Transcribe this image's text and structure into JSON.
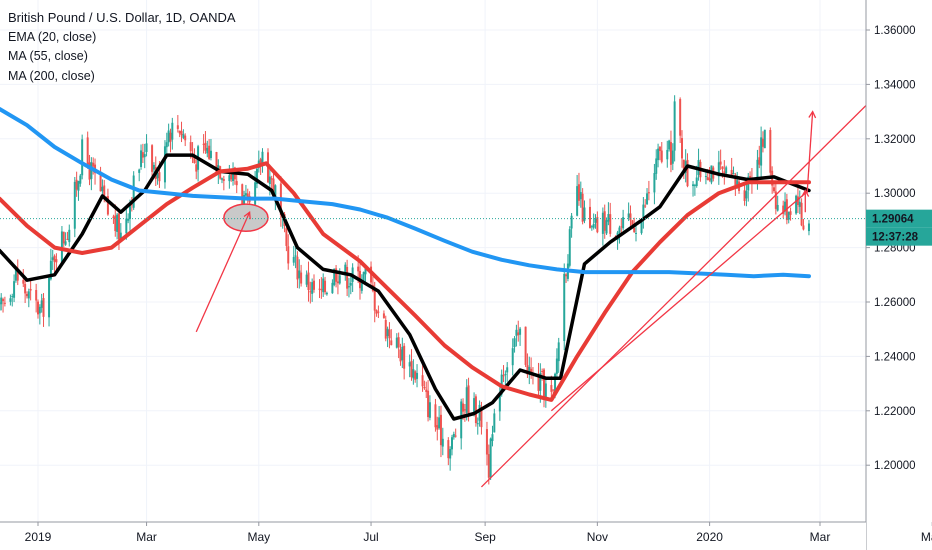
{
  "legend": {
    "title": "British Pound / U.S. Dollar, 1D, OANDA",
    "indicators": [
      "EMA (20, close)",
      "MA (55, close)",
      "MA (200, close)"
    ]
  },
  "price_axis": {
    "ticks": [
      "1.36000",
      "1.34000",
      "1.32000",
      "1.30000",
      "1.28000",
      "1.26000",
      "1.24000",
      "1.22000",
      "1.20000"
    ],
    "last_price": "1.29064",
    "countdown": "12:37:28",
    "last_price_color": "#26a69a",
    "countdown_color": "#26a69a"
  },
  "time_axis": {
    "labels": [
      "2019",
      "Mar",
      "May",
      "Jul",
      "Sep",
      "Nov",
      "2020",
      "Mar",
      "May"
    ]
  },
  "colors": {
    "up": "#26a69a",
    "down": "#ef5350",
    "ema20": "#000000",
    "ma55": "#e83b35",
    "ma200": "#2196f3",
    "trendline": "#f23645",
    "highlight_fill": "#c9c9c9"
  },
  "chart_data": {
    "type": "candlestick",
    "title": "British Pound / U.S. Dollar, 1D, OANDA",
    "ylim": [
      1.186,
      1.372
    ],
    "xlim": [
      "2018-12-11",
      "2020-05-29"
    ],
    "y_ticks": [
      1.36,
      1.34,
      1.32,
      1.3,
      1.28,
      1.26,
      1.24,
      1.22,
      1.2
    ],
    "x_ticks": [
      "2019-01-01",
      "2019-03-01",
      "2019-05-01",
      "2019-07-01",
      "2019-09-01",
      "2019-11-01",
      "2020-01-01",
      "2020-03-01",
      "2020-05-01"
    ],
    "ohlc_keypoints": [
      [
        "2018-12-11",
        1.256
      ],
      [
        "2018-12-20",
        1.27
      ],
      [
        "2018-12-27",
        1.262
      ],
      [
        "2019-01-03",
        1.256
      ],
      [
        "2019-01-10",
        1.278
      ],
      [
        "2019-01-18",
        1.288
      ],
      [
        "2019-01-25",
        1.315
      ],
      [
        "2019-02-01",
        1.305
      ],
      [
        "2019-02-08",
        1.293
      ],
      [
        "2019-02-15",
        1.285
      ],
      [
        "2019-02-22",
        1.303
      ],
      [
        "2019-03-01",
        1.32
      ],
      [
        "2019-03-07",
        1.305
      ],
      [
        "2019-03-12",
        1.323
      ],
      [
        "2019-03-19",
        1.325
      ],
      [
        "2019-03-27",
        1.312
      ],
      [
        "2019-04-03",
        1.316
      ],
      [
        "2019-04-10",
        1.31
      ],
      [
        "2019-04-18",
        1.306
      ],
      [
        "2019-04-26",
        1.292
      ],
      [
        "2019-05-03",
        1.315
      ],
      [
        "2019-05-10",
        1.3
      ],
      [
        "2019-05-16",
        1.28
      ],
      [
        "2019-05-24",
        1.27
      ],
      [
        "2019-06-03",
        1.262
      ],
      [
        "2019-06-12",
        1.272
      ],
      [
        "2019-06-20",
        1.269
      ],
      [
        "2019-06-28",
        1.27
      ],
      [
        "2019-07-08",
        1.252
      ],
      [
        "2019-07-16",
        1.243
      ],
      [
        "2019-07-26",
        1.233
      ],
      [
        "2019-08-05",
        1.215
      ],
      [
        "2019-08-13",
        1.206
      ],
      [
        "2019-08-22",
        1.225
      ],
      [
        "2019-08-30",
        1.217
      ],
      [
        "2019-09-03",
        1.2
      ],
      [
        "2019-09-10",
        1.235
      ],
      [
        "2019-09-20",
        1.248
      ],
      [
        "2019-09-26",
        1.232
      ],
      [
        "2019-10-03",
        1.229
      ],
      [
        "2019-10-08",
        1.224
      ],
      [
        "2019-10-14",
        1.27
      ],
      [
        "2019-10-21",
        1.3
      ],
      [
        "2019-10-28",
        1.285
      ],
      [
        "2019-11-05",
        1.29
      ],
      [
        "2019-11-15",
        1.287
      ],
      [
        "2019-11-25",
        1.291
      ],
      [
        "2019-12-04",
        1.313
      ],
      [
        "2019-12-12",
        1.315
      ],
      [
        "2019-12-13",
        1.33
      ],
      [
        "2019-12-20",
        1.305
      ],
      [
        "2020-01-02",
        1.31
      ],
      [
        "2020-01-10",
        1.305
      ],
      [
        "2020-01-20",
        1.302
      ],
      [
        "2020-01-31",
        1.32
      ],
      [
        "2020-02-07",
        1.295
      ],
      [
        "2020-02-12",
        1.294
      ],
      [
        "2020-02-18",
        1.3
      ],
      [
        "2020-02-20",
        1.289
      ],
      [
        "2020-02-24",
        1.2906
      ]
    ],
    "series": [
      {
        "name": "EMA (20, close)",
        "points": [
          [
            "2018-12-11",
            1.279
          ],
          [
            "2018-12-26",
            1.268
          ],
          [
            "2019-01-10",
            1.27
          ],
          [
            "2019-01-25",
            1.285
          ],
          [
            "2019-02-05",
            1.299
          ],
          [
            "2019-02-15",
            1.293
          ],
          [
            "2019-02-28",
            1.301
          ],
          [
            "2019-03-12",
            1.314
          ],
          [
            "2019-03-26",
            1.314
          ],
          [
            "2019-04-10",
            1.308
          ],
          [
            "2019-04-25",
            1.307
          ],
          [
            "2019-05-08",
            1.301
          ],
          [
            "2019-05-22",
            1.28
          ],
          [
            "2019-06-05",
            1.272
          ],
          [
            "2019-06-20",
            1.27
          ],
          [
            "2019-07-05",
            1.264
          ],
          [
            "2019-07-22",
            1.248
          ],
          [
            "2019-08-05",
            1.228
          ],
          [
            "2019-08-15",
            1.217
          ],
          [
            "2019-08-26",
            1.219
          ],
          [
            "2019-09-05",
            1.223
          ],
          [
            "2019-09-20",
            1.235
          ],
          [
            "2019-10-04",
            1.232
          ],
          [
            "2019-10-12",
            1.232
          ],
          [
            "2019-10-25",
            1.274
          ],
          [
            "2019-11-08",
            1.282
          ],
          [
            "2019-11-25",
            1.29
          ],
          [
            "2019-12-05",
            1.295
          ],
          [
            "2019-12-20",
            1.31
          ],
          [
            "2020-01-06",
            1.307
          ],
          [
            "2020-01-22",
            1.305
          ],
          [
            "2020-02-05",
            1.306
          ],
          [
            "2020-02-24",
            1.301
          ]
        ]
      },
      {
        "name": "MA (55, close)",
        "points": [
          [
            "2018-12-11",
            1.298
          ],
          [
            "2018-12-26",
            1.288
          ],
          [
            "2019-01-10",
            1.28
          ],
          [
            "2019-01-25",
            1.278
          ],
          [
            "2019-02-10",
            1.28
          ],
          [
            "2019-02-25",
            1.288
          ],
          [
            "2019-03-12",
            1.296
          ],
          [
            "2019-03-26",
            1.302
          ],
          [
            "2019-04-10",
            1.308
          ],
          [
            "2019-04-25",
            1.309
          ],
          [
            "2019-05-05",
            1.311
          ],
          [
            "2019-05-20",
            1.3
          ],
          [
            "2019-06-05",
            1.285
          ],
          [
            "2019-06-25",
            1.275
          ],
          [
            "2019-07-10",
            1.265
          ],
          [
            "2019-07-25",
            1.255
          ],
          [
            "2019-08-10",
            1.244
          ],
          [
            "2019-08-25",
            1.236
          ],
          [
            "2019-09-10",
            1.229
          ],
          [
            "2019-09-25",
            1.226
          ],
          [
            "2019-10-07",
            1.224
          ],
          [
            "2019-10-21",
            1.24
          ],
          [
            "2019-11-05",
            1.256
          ],
          [
            "2019-11-20",
            1.271
          ],
          [
            "2019-12-05",
            1.282
          ],
          [
            "2019-12-20",
            1.292
          ],
          [
            "2020-01-06",
            1.3
          ],
          [
            "2020-01-22",
            1.304
          ],
          [
            "2020-02-06",
            1.304
          ],
          [
            "2020-02-24",
            1.304
          ]
        ]
      },
      {
        "name": "MA (200, close)",
        "points": [
          [
            "2018-12-11",
            1.331
          ],
          [
            "2018-12-26",
            1.325
          ],
          [
            "2019-01-10",
            1.317
          ],
          [
            "2019-01-25",
            1.311
          ],
          [
            "2019-02-10",
            1.305
          ],
          [
            "2019-02-25",
            1.301
          ],
          [
            "2019-03-12",
            1.3
          ],
          [
            "2019-03-26",
            1.299
          ],
          [
            "2019-04-10",
            1.2985
          ],
          [
            "2019-04-25",
            1.298
          ],
          [
            "2019-05-10",
            1.298
          ],
          [
            "2019-05-25",
            1.297
          ],
          [
            "2019-06-10",
            1.296
          ],
          [
            "2019-06-25",
            1.294
          ],
          [
            "2019-07-10",
            1.291
          ],
          [
            "2019-07-25",
            1.287
          ],
          [
            "2019-08-10",
            1.2825
          ],
          [
            "2019-08-25",
            1.2785
          ],
          [
            "2019-09-10",
            1.2755
          ],
          [
            "2019-09-25",
            1.2735
          ],
          [
            "2019-10-10",
            1.272
          ],
          [
            "2019-10-25",
            1.271
          ],
          [
            "2019-11-10",
            1.271
          ],
          [
            "2019-11-25",
            1.271
          ],
          [
            "2019-12-10",
            1.271
          ],
          [
            "2019-12-25",
            1.2705
          ],
          [
            "2020-01-10",
            1.27
          ],
          [
            "2020-01-25",
            1.2695
          ],
          [
            "2020-02-10",
            1.27
          ],
          [
            "2020-02-24",
            1.2695
          ]
        ]
      }
    ],
    "drawings": {
      "trendline_main": [
        [
          "2019-08-30",
          1.192
        ],
        [
          "2020-04-14",
          1.345
        ]
      ],
      "trendline_short": [
        [
          "2019-10-07",
          1.22
        ],
        [
          "2020-02-22",
          1.3
        ]
      ],
      "arrow_long": [
        [
          "2019-03-28",
          1.249
        ],
        [
          "2019-04-26",
          1.293
        ]
      ],
      "arrow_up_1": [
        [
          "2020-02-23",
          1.3
        ],
        [
          "2020-02-26",
          1.33
        ]
      ],
      "arrow_up_2": [
        [
          "2020-02-22",
          1.293
        ],
        [
          "2020-02-22",
          1.301
        ]
      ],
      "ellipse_center": [
        "2019-04-24",
        1.291
      ],
      "ellipse_span_days": 12,
      "ellipse_span_price": 0.005
    }
  }
}
